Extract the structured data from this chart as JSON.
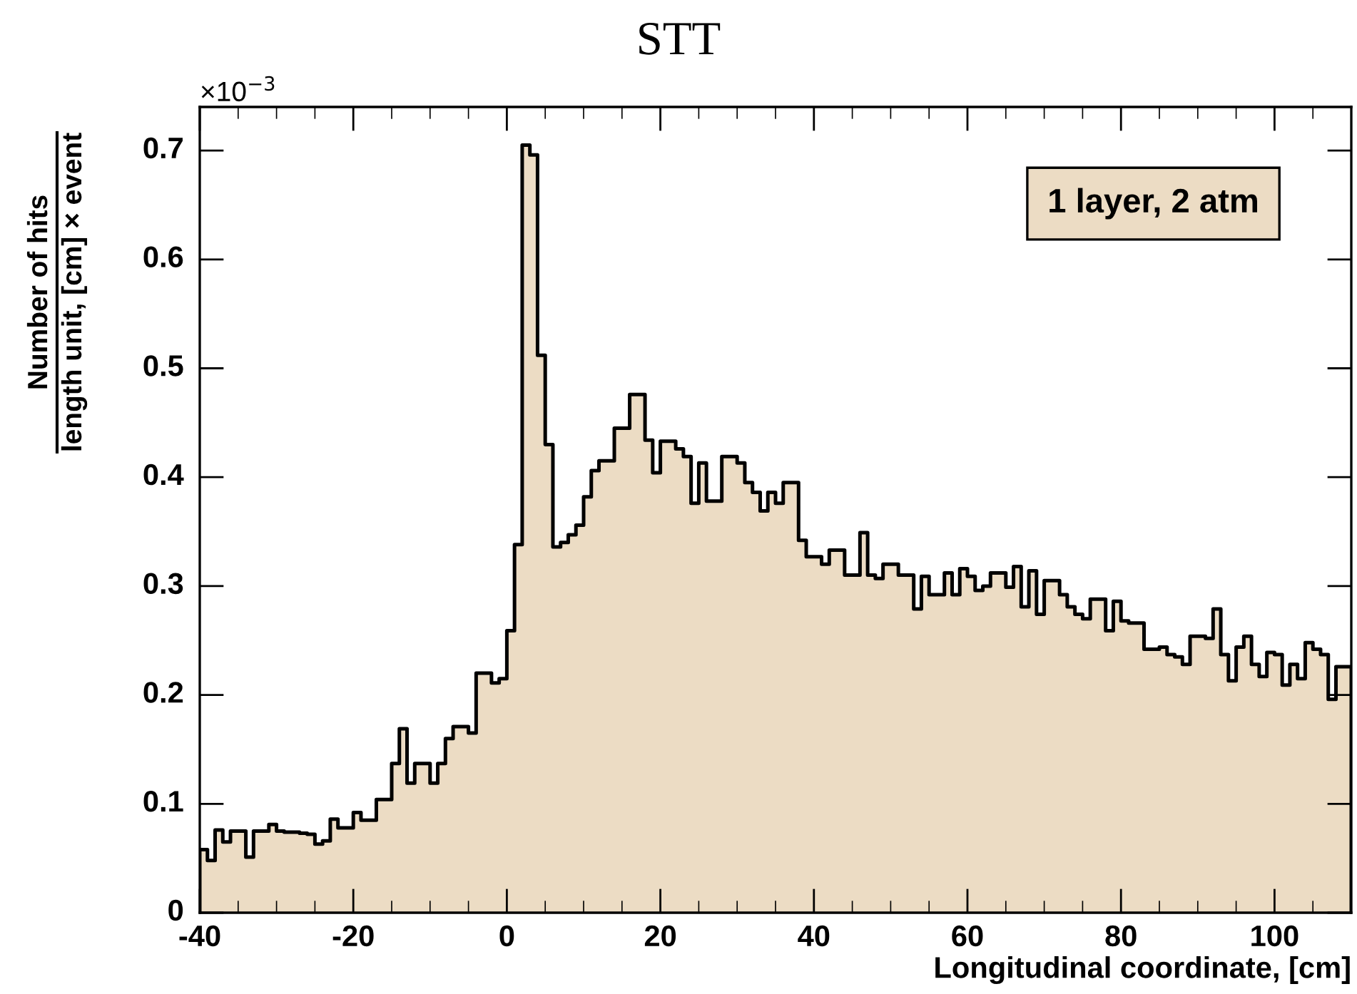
{
  "chart_data": {
    "type": "histogram",
    "title": "STT",
    "xlabel": "Longitudinal coordinate, [cm]",
    "ylabel": "Number of hits\nlength unit, [cm] × event",
    "annotations": [
      "×10$^{−3}$",
      "1 layer, 2 atm"
    ],
    "bins": [
      -40,
      -39,
      -38,
      -37,
      -36,
      -35,
      -34,
      -33,
      -32,
      -31,
      -30,
      -29,
      -28,
      -27,
      -26,
      -25,
      -24,
      -23,
      -22,
      -21,
      -20,
      -19,
      -18,
      -17,
      -16,
      -15,
      -14,
      -13,
      -12,
      -11,
      -10,
      -9,
      -8,
      -7,
      -6,
      -5,
      -4,
      -3,
      -2,
      -1,
      0,
      1,
      2,
      3,
      4,
      5,
      6,
      7,
      8,
      9,
      10,
      11,
      12,
      13,
      14,
      15,
      16,
      17,
      18,
      19,
      20,
      21,
      22,
      23,
      24,
      25,
      26,
      27,
      28,
      29,
      30,
      31,
      32,
      33,
      34,
      35,
      36,
      37,
      38,
      39,
      40,
      41,
      42,
      43,
      44,
      45,
      46,
      47,
      48,
      49,
      50,
      51,
      52,
      53,
      54,
      55,
      56,
      57,
      58,
      59,
      60,
      61,
      62,
      63,
      64,
      65,
      66,
      67,
      68,
      69,
      70,
      71,
      72,
      73,
      74,
      75,
      76,
      77,
      78,
      79,
      80,
      81,
      82,
      83,
      84,
      85,
      86,
      87,
      88,
      89,
      90,
      91,
      92,
      93,
      94,
      95,
      96,
      97,
      98,
      99,
      100,
      101,
      102,
      103,
      104,
      105,
      106,
      107,
      108,
      109,
      110
    ],
    "values": [
      0.058,
      0.048,
      0.076,
      0.065,
      0.075,
      0.075,
      0.051,
      0.075,
      0.075,
      0.081,
      0.075,
      0.074,
      0.074,
      0.073,
      0.072,
      0.063,
      0.066,
      0.086,
      0.078,
      0.078,
      0.092,
      0.085,
      0.085,
      0.104,
      0.104,
      0.137,
      0.169,
      0.119,
      0.137,
      0.137,
      0.119,
      0.137,
      0.16,
      0.171,
      0.171,
      0.165,
      0.22,
      0.22,
      0.211,
      0.215,
      0.259,
      0.338,
      0.705,
      0.696,
      0.512,
      0.43,
      0.336,
      0.34,
      0.347,
      0.356,
      0.382,
      0.406,
      0.415,
      0.415,
      0.445,
      0.445,
      0.476,
      0.476,
      0.434,
      0.404,
      0.433,
      0.433,
      0.426,
      0.419,
      0.376,
      0.413,
      0.378,
      0.378,
      0.419,
      0.419,
      0.413,
      0.395,
      0.386,
      0.369,
      0.386,
      0.376,
      0.395,
      0.395,
      0.342,
      0.327,
      0.327,
      0.32,
      0.333,
      0.333,
      0.31,
      0.31,
      0.349,
      0.31,
      0.307,
      0.32,
      0.32,
      0.31,
      0.31,
      0.279,
      0.309,
      0.292,
      0.292,
      0.312,
      0.292,
      0.316,
      0.309,
      0.296,
      0.3,
      0.312,
      0.312,
      0.299,
      0.318,
      0.281,
      0.314,
      0.274,
      0.305,
      0.305,
      0.292,
      0.281,
      0.274,
      0.27,
      0.288,
      0.288,
      0.259,
      0.286,
      0.268,
      0.266,
      0.266,
      0.242,
      0.242,
      0.244,
      0.237,
      0.235,
      0.228,
      0.254,
      0.254,
      0.252,
      0.279,
      0.237,
      0.213,
      0.244,
      0.254,
      0.228,
      0.217,
      0.239,
      0.237,
      0.209,
      0.228,
      0.215,
      0.248,
      0.242,
      0.237,
      0.196,
      0.226,
      0.226
    ],
    "color": "#ecdcc4",
    "xlim": [
      -40,
      110
    ],
    "xticks": [
      -40,
      -20,
      0,
      20,
      40,
      60,
      80,
      100
    ],
    "ylim": [
      0,
      0.74
    ],
    "yticks": [
      0,
      0.1,
      0.2,
      0.3,
      0.4,
      0.5,
      0.6,
      0.7
    ],
    "grid": false,
    "legend": false
  }
}
